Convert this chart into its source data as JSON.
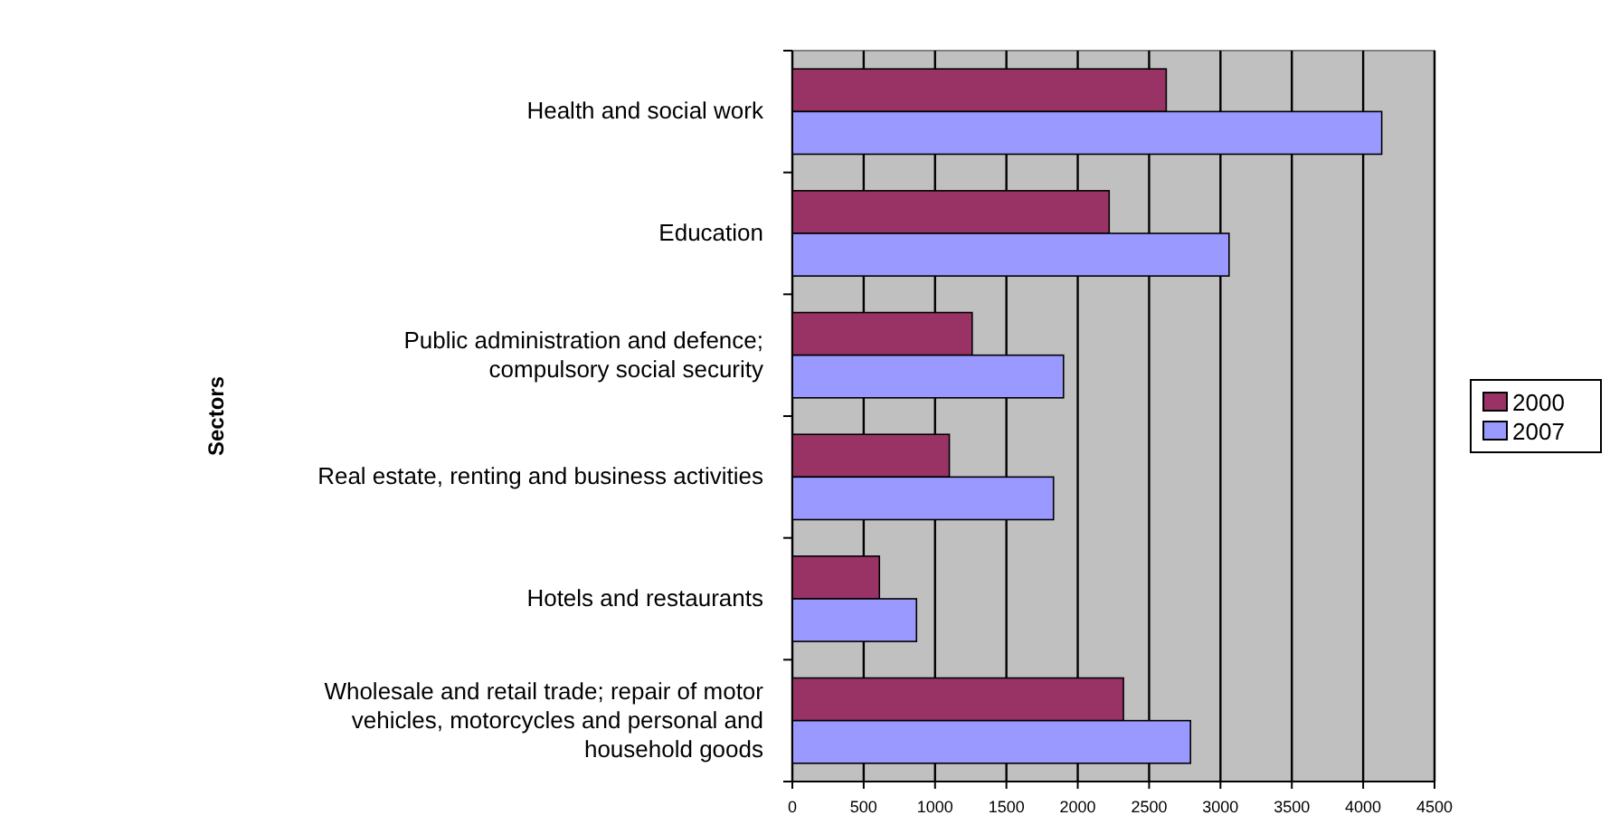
{
  "chart_data": {
    "type": "bar",
    "orientation": "horizontal",
    "ylabel": "Sectors",
    "categories": [
      "Health and social work",
      "Education",
      "Public administration and defence; compulsory social security",
      "Real estate, renting and business activities",
      "Hotels and restaurants",
      "Wholesale and retail trade; repair of motor vehicles, motorcycles and personal and household goods"
    ],
    "series": [
      {
        "name": "2000",
        "color": "#993366",
        "values": [
          2620,
          2220,
          1260,
          1100,
          610,
          2320
        ]
      },
      {
        "name": "2007",
        "color": "#9999ff",
        "values": [
          4130,
          3060,
          1900,
          1830,
          870,
          2790
        ]
      }
    ],
    "xlim": [
      0,
      4500
    ],
    "xticks": [
      0,
      500,
      1000,
      1500,
      2000,
      2500,
      3000,
      3500,
      4000,
      4500
    ],
    "grid": "x",
    "legend": "right"
  }
}
